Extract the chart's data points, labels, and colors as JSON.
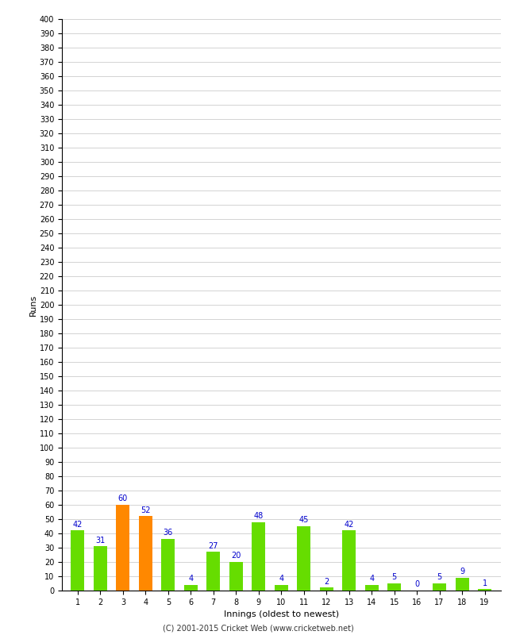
{
  "innings": [
    1,
    2,
    3,
    4,
    5,
    6,
    7,
    8,
    9,
    10,
    11,
    12,
    13,
    14,
    15,
    16,
    17,
    18,
    19
  ],
  "runs": [
    42,
    31,
    60,
    52,
    36,
    4,
    27,
    20,
    48,
    4,
    45,
    2,
    42,
    4,
    5,
    0,
    5,
    9,
    1
  ],
  "bar_colors": [
    "#66dd00",
    "#66dd00",
    "#ff8800",
    "#ff8800",
    "#66dd00",
    "#66dd00",
    "#66dd00",
    "#66dd00",
    "#66dd00",
    "#66dd00",
    "#66dd00",
    "#66dd00",
    "#66dd00",
    "#66dd00",
    "#66dd00",
    "#66dd00",
    "#66dd00",
    "#66dd00",
    "#66dd00"
  ],
  "label_color": "#0000cc",
  "xlabel": "Innings (oldest to newest)",
  "ylabel": "Runs",
  "ylim": [
    0,
    400
  ],
  "background_color": "#ffffff",
  "grid_color": "#cccccc",
  "footer": "(C) 2001-2015 Cricket Web (www.cricketweb.net)"
}
